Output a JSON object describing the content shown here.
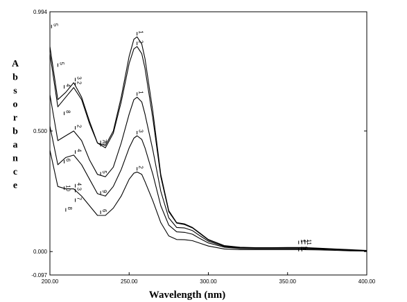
{
  "chart_data": {
    "type": "line",
    "xlabel": "Wavelength (nm)",
    "ylabel": "Absorbance",
    "xlim": [
      200,
      400
    ],
    "ylim": [
      -0.097,
      0.994
    ],
    "x_ticks": [
      "200.00",
      "250.00",
      "300.00",
      "350.00",
      "400.00"
    ],
    "y_ticks": [
      {
        "value": 0.994,
        "label": "0.994"
      },
      {
        "value": 0.5,
        "label": "0.500"
      },
      {
        "value": 0.0,
        "label": "0.000"
      },
      {
        "value": -0.097,
        "label": "-0.097"
      }
    ],
    "grid": false,
    "x": [
      200,
      205,
      210,
      215,
      220,
      225,
      230,
      235,
      240,
      245,
      250,
      253,
      255,
      258,
      260,
      265,
      270,
      275,
      280,
      285,
      290,
      295,
      300,
      310,
      320,
      330,
      340,
      350,
      360,
      370,
      380,
      390,
      400
    ],
    "series": [
      {
        "label": "1",
        "values": [
          0.85,
          0.63,
          0.66,
          0.7,
          0.64,
          0.54,
          0.45,
          0.44,
          0.5,
          0.64,
          0.81,
          0.88,
          0.89,
          0.86,
          0.8,
          0.58,
          0.32,
          0.17,
          0.12,
          0.115,
          0.1,
          0.075,
          0.05,
          0.025,
          0.018,
          0.016,
          0.016,
          0.017,
          0.017,
          0.014,
          0.011,
          0.008,
          0.005
        ]
      },
      {
        "label": "2",
        "values": [
          0.82,
          0.6,
          0.64,
          0.68,
          0.63,
          0.53,
          0.45,
          0.43,
          0.49,
          0.62,
          0.78,
          0.84,
          0.85,
          0.82,
          0.76,
          0.55,
          0.31,
          0.165,
          0.118,
          0.112,
          0.098,
          0.073,
          0.048,
          0.024,
          0.017,
          0.015,
          0.015,
          0.016,
          0.016,
          0.013,
          0.01,
          0.007,
          0.004
        ]
      },
      {
        "label": "1",
        "values": [
          0.65,
          0.46,
          0.48,
          0.5,
          0.46,
          0.38,
          0.32,
          0.31,
          0.35,
          0.45,
          0.57,
          0.63,
          0.64,
          0.62,
          0.57,
          0.42,
          0.25,
          0.14,
          0.1,
          0.098,
          0.087,
          0.064,
          0.043,
          0.021,
          0.015,
          0.014,
          0.014,
          0.014,
          0.014,
          0.012,
          0.009,
          0.006,
          0.004
        ]
      },
      {
        "label": "3",
        "values": [
          0.52,
          0.36,
          0.39,
          0.4,
          0.36,
          0.3,
          0.24,
          0.23,
          0.27,
          0.34,
          0.43,
          0.47,
          0.48,
          0.465,
          0.43,
          0.32,
          0.19,
          0.11,
          0.082,
          0.08,
          0.072,
          0.053,
          0.036,
          0.018,
          0.013,
          0.012,
          0.012,
          0.012,
          0.012,
          0.01,
          0.008,
          0.005,
          0.003
        ]
      },
      {
        "label": "2",
        "values": [
          0.42,
          0.27,
          0.26,
          0.26,
          0.23,
          0.19,
          0.15,
          0.15,
          0.18,
          0.23,
          0.3,
          0.325,
          0.33,
          0.32,
          0.29,
          0.21,
          0.12,
          0.065,
          0.05,
          0.049,
          0.045,
          0.034,
          0.023,
          0.011,
          0.008,
          0.008,
          0.008,
          0.008,
          0.008,
          0.007,
          0.005,
          0.003,
          0.002
        ]
      }
    ],
    "peak_markers": [
      {
        "x": 255,
        "y": 0.89,
        "label": "1"
      },
      {
        "x": 255,
        "y": 0.85,
        "label": "2"
      },
      {
        "x": 255,
        "y": 0.64,
        "label": "1"
      },
      {
        "x": 255,
        "y": 0.48,
        "label": "3"
      },
      {
        "x": 255,
        "y": 0.33,
        "label": "2"
      },
      {
        "x": 232,
        "y": 0.44,
        "label": "7"
      },
      {
        "x": 232,
        "y": 0.43,
        "label": "6"
      },
      {
        "x": 232,
        "y": 0.31,
        "label": "5"
      },
      {
        "x": 232,
        "y": 0.23,
        "label": "9"
      },
      {
        "x": 232,
        "y": 0.15,
        "label": "6"
      },
      {
        "x": 216,
        "y": 0.7,
        "label": "3"
      },
      {
        "x": 216,
        "y": 0.68,
        "label": "2"
      },
      {
        "x": 216,
        "y": 0.5,
        "label": "2"
      },
      {
        "x": 216,
        "y": 0.4,
        "label": "4"
      },
      {
        "x": 216,
        "y": 0.26,
        "label": "4"
      },
      {
        "x": 216,
        "y": 0.24,
        "label": "3"
      },
      {
        "x": 216,
        "y": 0.2,
        "label": "7"
      },
      {
        "x": 201,
        "y": 0.92,
        "label": "5"
      },
      {
        "x": 205,
        "y": 0.76,
        "label": "5"
      },
      {
        "x": 209,
        "y": 0.67,
        "label": "4"
      },
      {
        "x": 209,
        "y": 0.56,
        "label": "8"
      },
      {
        "x": 209,
        "y": 0.36,
        "label": "6"
      },
      {
        "x": 209,
        "y": 0.25,
        "label": "10"
      },
      {
        "x": 210,
        "y": 0.16,
        "label": "8"
      },
      {
        "x": 357,
        "y": 0.025,
        "label": "1"
      },
      {
        "x": 359,
        "y": 0.025,
        "label": "2"
      },
      {
        "x": 361,
        "y": 0.025,
        "label": "11"
      },
      {
        "x": 357,
        "y": -0.005,
        "label": "8"
      },
      {
        "x": 359,
        "y": -0.005,
        "label": "6"
      }
    ]
  }
}
